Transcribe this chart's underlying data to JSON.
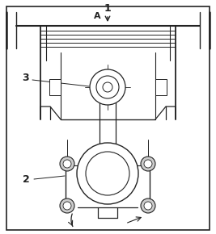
{
  "bg_color": "#ffffff",
  "line_color": "#222222",
  "label_1": "1",
  "label_A": "A",
  "label_2": "2",
  "label_3": "3",
  "fig_width": 2.67,
  "fig_height": 2.9,
  "dpi": 100
}
